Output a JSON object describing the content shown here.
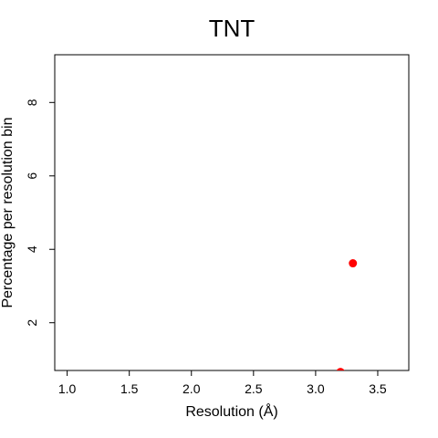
{
  "chart_data": {
    "type": "scatter",
    "title": "TNT",
    "xlabel": "Resolution (Å)",
    "ylabel": "Percentage per resolution bin",
    "xlim": [
      0.9,
      3.75
    ],
    "ylim": [
      0.7,
      9.3
    ],
    "xticks": [
      "1.0",
      "1.5",
      "2.0",
      "2.5",
      "3.0",
      "3.5"
    ],
    "yticks": [
      "2",
      "4",
      "6",
      "8"
    ],
    "grid": false,
    "points": [
      {
        "x": 3.3,
        "y": 3.62,
        "color": "#ff0000"
      },
      {
        "x": 3.2,
        "y": 0.66,
        "color": "#ff0000"
      }
    ]
  }
}
